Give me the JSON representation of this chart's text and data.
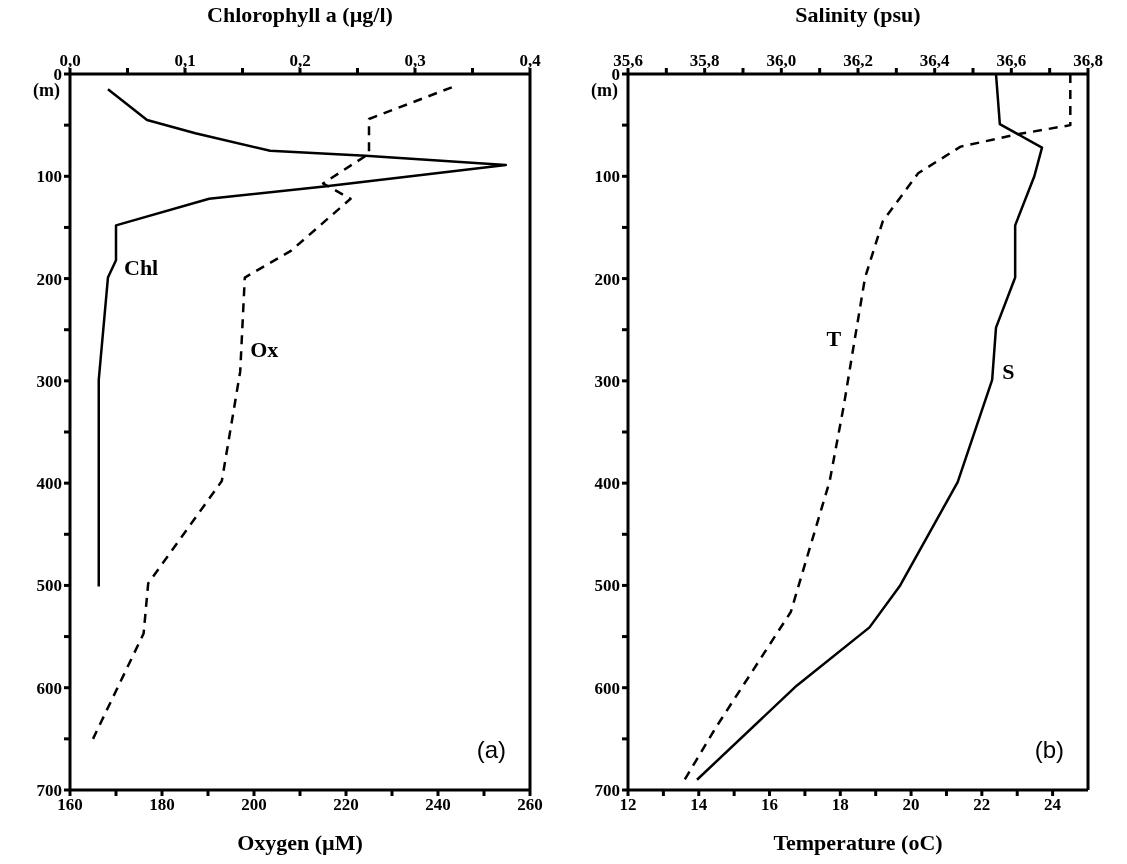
{
  "chart_data": [
    {
      "type": "line",
      "xlabel": "Oxygen  (µM)",
      "x2label": "Chlorophyll a  (µg/l)",
      "ylabel": "(m)",
      "xlim": [
        160,
        260
      ],
      "xticks": [
        160,
        {
          "value": 170,
          "label": null
        },
        180,
        {
          "value": 190,
          "label": null
        },
        200,
        {
          "value": 210,
          "label": null
        },
        220,
        {
          "value": 230,
          "label": null
        },
        240,
        {
          "value": 250,
          "label": null
        },
        260
      ],
      "x2lim": [
        0,
        0.4
      ],
      "x2ticks": [
        {
          "value": 0,
          "label": "0,0"
        },
        {
          "value": 0.05,
          "label": null
        },
        {
          "value": 0.1,
          "label": "0,1"
        },
        {
          "value": 0.15,
          "label": null
        },
        {
          "value": 0.2,
          "label": "0,2"
        },
        {
          "value": 0.25,
          "label": null
        },
        {
          "value": 0.3,
          "label": "0,3"
        },
        {
          "value": 0.35,
          "label": null
        },
        {
          "value": 0.4,
          "label": "0,4"
        }
      ],
      "ylim": [
        700,
        0
      ],
      "yticks": [
        0,
        {
          "value": 50,
          "label": null
        },
        100,
        {
          "value": 150,
          "label": null
        },
        200,
        {
          "value": 250,
          "label": null
        },
        300,
        {
          "value": 350,
          "label": null
        },
        400,
        {
          "value": 450,
          "label": null
        },
        500,
        {
          "value": 550,
          "label": null
        },
        600,
        {
          "value": 650,
          "label": null
        },
        700
      ],
      "marker": "none",
      "annotations": [
        "(a)"
      ],
      "series": [
        {
          "name": "Chl",
          "axis": "x2",
          "color": "#000000",
          "line_style": "solid",
          "x": [
            0.033,
            0.067,
            0.109,
            0.174,
            0.257,
            0.379,
            0.221,
            0.121,
            0.04,
            0.04,
            0.033,
            0.025,
            0.025
          ],
          "values": [
            15,
            45,
            58,
            75,
            80,
            89,
            110,
            122,
            148,
            182,
            199,
            299,
            501
          ]
        },
        {
          "name": "Ox",
          "color": "#000000",
          "line_style": "dashed",
          "x": [
            243,
            225,
            225,
            215,
            221,
            208,
            198,
            197,
            193,
            177,
            176,
            165
          ],
          "values": [
            13,
            44,
            78,
            107,
            122,
            173,
            199,
            291,
            398,
            498,
            547,
            650
          ]
        }
      ]
    },
    {
      "type": "line",
      "xlabel": "Temperature  (oC)",
      "x2label": "Salinity  (psu)",
      "ylabel": "(m)",
      "xlim": [
        12,
        25
      ],
      "xticks": [
        12,
        {
          "value": 13,
          "label": null
        },
        14,
        {
          "value": 15,
          "label": null
        },
        16,
        {
          "value": 17,
          "label": null
        },
        18,
        {
          "value": 19,
          "label": null
        },
        20,
        {
          "value": 21,
          "label": null
        },
        22,
        {
          "value": 23,
          "label": null
        },
        24
      ],
      "x2lim": [
        35.6,
        36.8
      ],
      "x2ticks": [
        {
          "value": 35.6,
          "label": "35,6"
        },
        {
          "value": 35.7,
          "label": null
        },
        {
          "value": 35.8,
          "label": "35,8"
        },
        {
          "value": 35.9,
          "label": null
        },
        {
          "value": 36.0,
          "label": "36,0"
        },
        {
          "value": 36.1,
          "label": null
        },
        {
          "value": 36.2,
          "label": "36,2"
        },
        {
          "value": 36.3,
          "label": null
        },
        {
          "value": 36.4,
          "label": "36,4"
        },
        {
          "value": 36.5,
          "label": null
        },
        {
          "value": 36.6,
          "label": "36,6"
        },
        {
          "value": 36.7,
          "label": null
        },
        {
          "value": 36.8,
          "label": "36,8"
        }
      ],
      "ylim": [
        700,
        0
      ],
      "yticks": [
        0,
        {
          "value": 50,
          "label": null
        },
        100,
        {
          "value": 150,
          "label": null
        },
        200,
        {
          "value": 250,
          "label": null
        },
        300,
        {
          "value": 350,
          "label": null
        },
        400,
        {
          "value": 450,
          "label": null
        },
        500,
        {
          "value": 550,
          "label": null
        },
        600,
        {
          "value": 650,
          "label": null
        },
        700
      ],
      "marker": "none",
      "annotations": [
        "(b)"
      ],
      "series": [
        {
          "name": "T",
          "color": "#000000",
          "line_style": "dashed",
          "x": [
            24.5,
            24.5,
            23.0,
            21.4,
            20.2,
            19.2,
            18.7,
            18.4,
            18.1,
            17.7,
            16.6,
            14.5,
            13.6
          ],
          "values": [
            0,
            50,
            59,
            71,
            97,
            144,
            199,
            261,
            324,
            398,
            526,
            638,
            690
          ]
        },
        {
          "name": "S",
          "axis": "x2",
          "color": "#000000",
          "line_style": "solid",
          "x": [
            36.56,
            36.57,
            36.68,
            36.66,
            36.61,
            36.61,
            36.56,
            36.55,
            36.46,
            36.31,
            36.23,
            36.04,
            35.78
          ],
          "values": [
            0,
            49,
            72,
            100,
            148,
            199,
            248,
            299,
            399,
            500,
            541,
            598,
            690
          ]
        }
      ]
    }
  ]
}
